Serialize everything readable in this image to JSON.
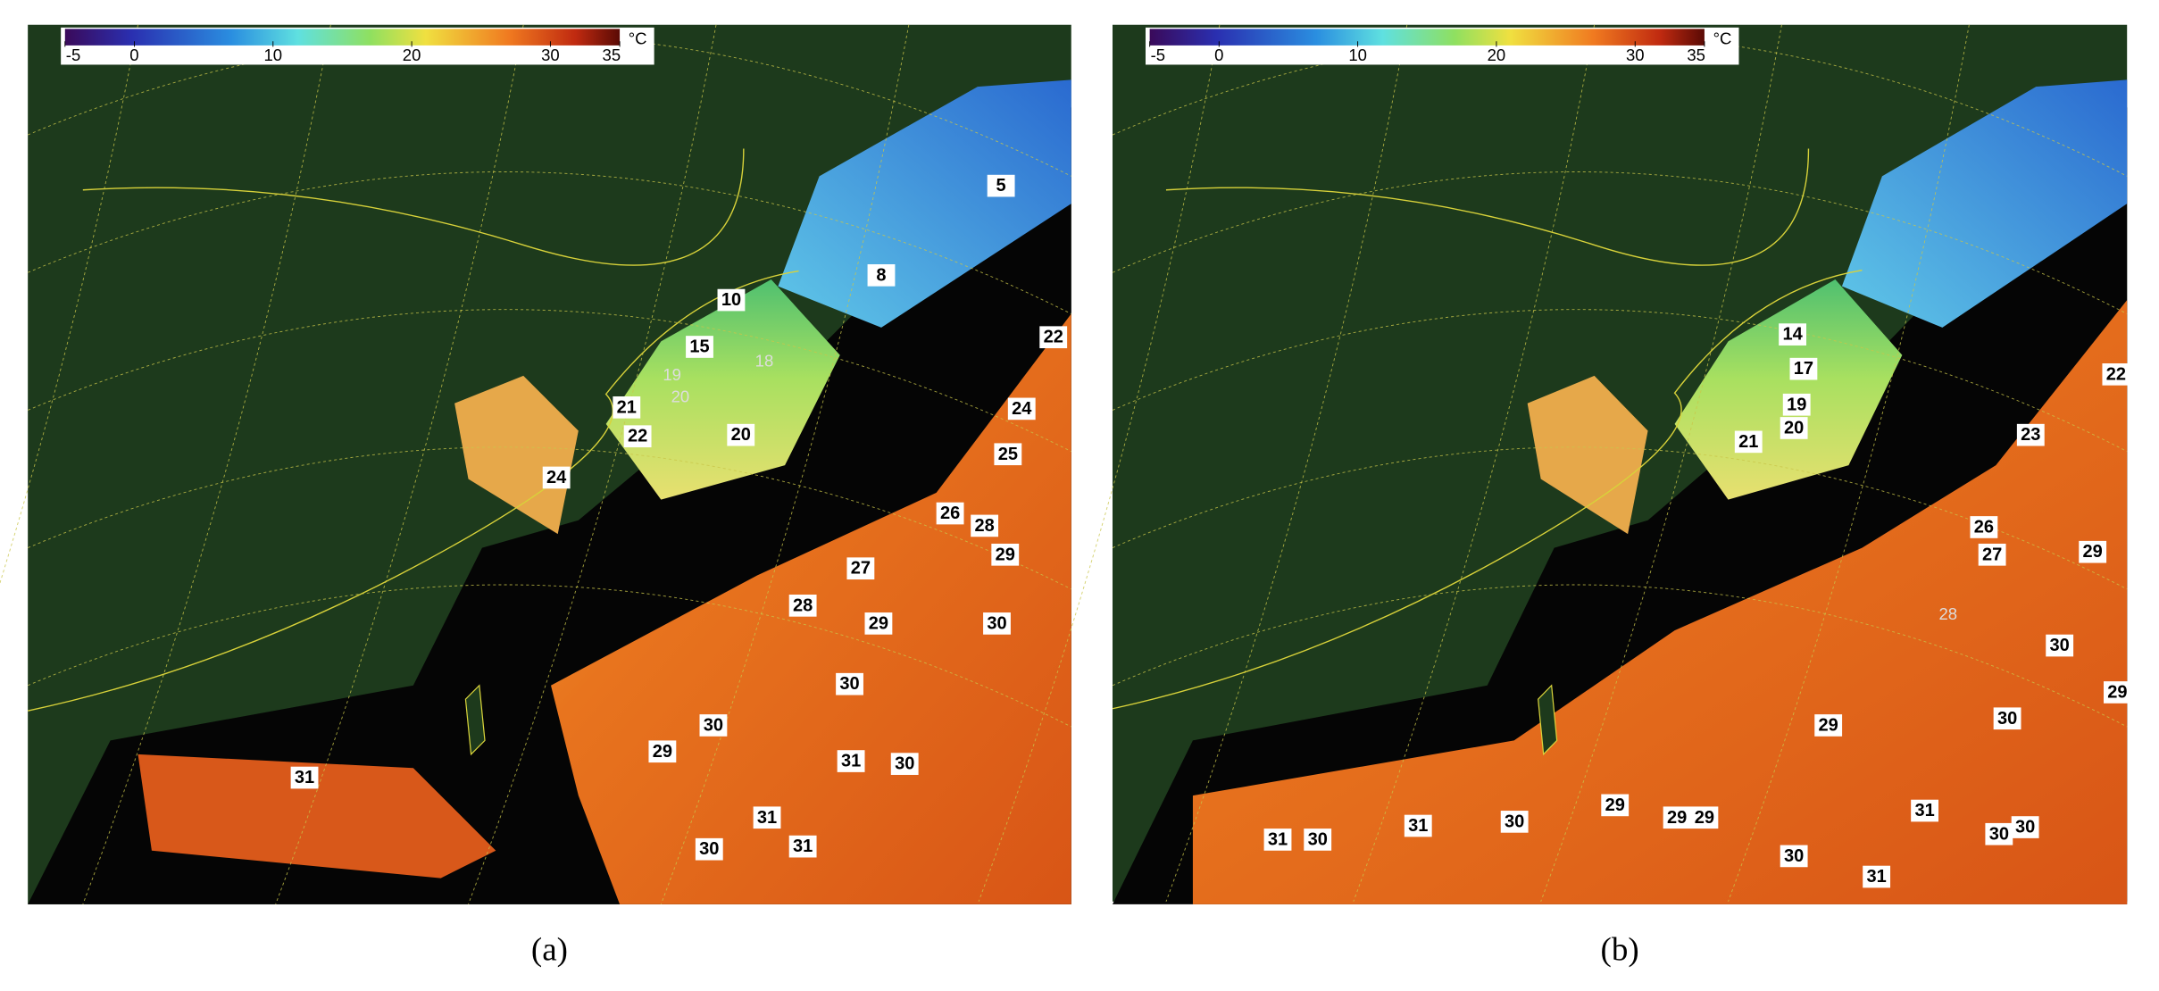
{
  "colorbar": {
    "lim": [
      -5,
      35
    ],
    "ticks": [
      -5,
      0,
      10,
      20,
      30,
      35
    ],
    "unit": "°C"
  },
  "panels": [
    {
      "caption": "(a)",
      "labels": [
        5,
        8,
        10,
        15,
        18,
        19,
        20,
        21,
        22,
        20,
        24,
        22,
        24,
        25,
        26,
        28,
        29,
        27,
        28,
        29,
        30,
        30,
        30,
        29,
        31,
        30,
        31,
        31,
        30,
        31
      ]
    },
    {
      "caption": "(b)",
      "labels": [
        14,
        17,
        19,
        20,
        21,
        22,
        23,
        26,
        27,
        29,
        28,
        30,
        29,
        30,
        29,
        31,
        30,
        31,
        30,
        29,
        29,
        29,
        31,
        30,
        30,
        30,
        31
      ]
    }
  ]
}
